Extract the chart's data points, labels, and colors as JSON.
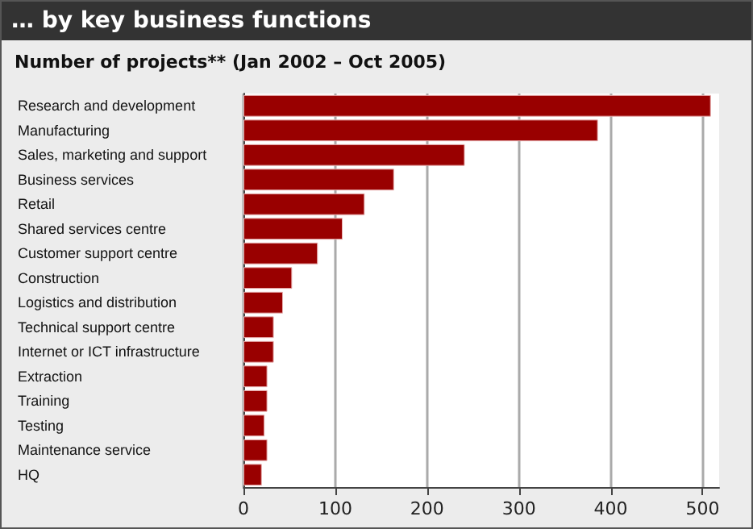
{
  "chart_data": {
    "type": "bar",
    "orientation": "horizontal",
    "title": "… by key business functions",
    "subtitle": "Number of projects** (Jan 2002 – Oct 2005)",
    "categories": [
      "Research and development",
      "Manufacturing",
      "Sales, marketing and support",
      "Business services",
      "Retail",
      "Shared services centre",
      "Customer support centre",
      "Construction",
      "Logistics and distribution",
      "Technical support centre",
      "Internet or ICT infrastructure",
      "Extraction",
      "Training",
      "Testing",
      "Maintenance service",
      "HQ"
    ],
    "values": [
      509,
      386,
      241,
      164,
      132,
      108,
      81,
      53,
      43,
      33,
      33,
      26,
      26,
      23,
      26,
      20
    ],
    "color": "#990000",
    "xlim": [
      0,
      518
    ],
    "xticks": [
      0,
      100,
      200,
      300,
      400,
      500
    ],
    "grid": "x"
  }
}
